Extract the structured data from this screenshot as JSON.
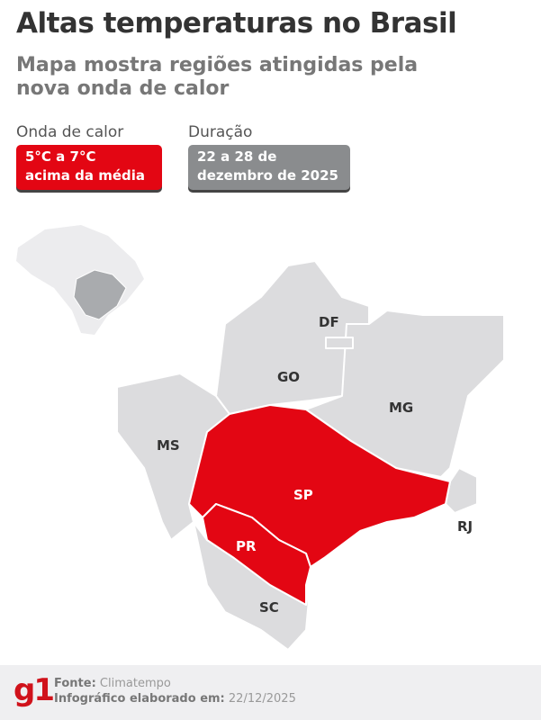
{
  "title": "Altas temperaturas no Brasil",
  "subtitle": "Mapa mostra regiões atingidas pela nova onda de calor",
  "legend": {
    "heat_label": "Onda de calor",
    "heat_value_line1": "5°C a 7°C",
    "heat_value_line2": "acima da média",
    "duration_label": "Duração",
    "duration_line1": "22 a 28 de",
    "duration_line2": "dezembro de 2025"
  },
  "colors": {
    "affected": "#e30613",
    "state": "#dcdcde",
    "border": "#ffffff",
    "duration_box": "#8a8c8e"
  },
  "map": {
    "states": [
      "DF",
      "GO",
      "MG",
      "MS",
      "SP",
      "PR",
      "RJ",
      "SC"
    ]
  },
  "footer": {
    "logo": "g1",
    "source_label": "Fonte:",
    "source": "Climatempo",
    "made_label": "Infográfico elaborado em:",
    "made_date": "22/12/2025"
  }
}
